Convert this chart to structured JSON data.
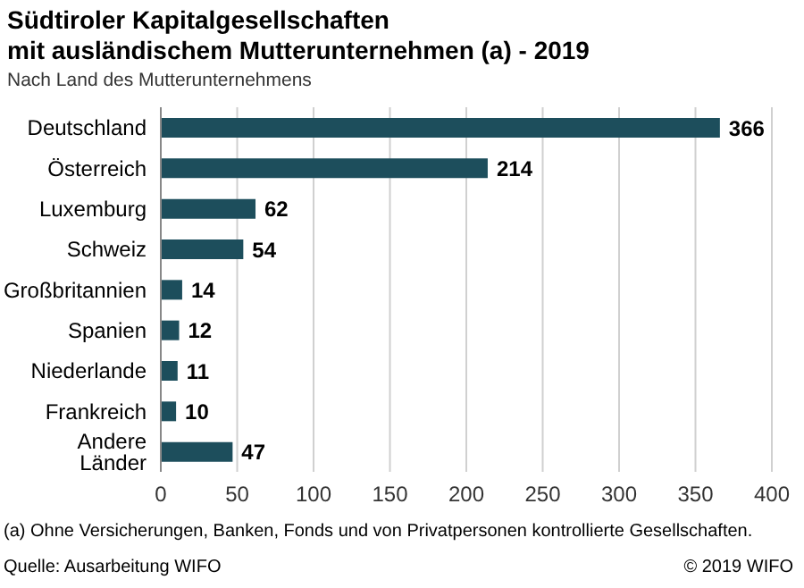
{
  "chart_data": {
    "type": "bar",
    "orientation": "horizontal",
    "title": "Südtiroler Kapitalgesellschaften\nmit ausländischem Mutterunternehmen (a) - 2019",
    "subtitle": "Nach Land des Mutterunternehmens",
    "categories": [
      "Deutschland",
      "Österreich",
      "Luxemburg",
      "Schweiz",
      "Großbritannien",
      "Spanien",
      "Niederlande",
      "Frankreich",
      "Andere Länder"
    ],
    "values": [
      366,
      214,
      62,
      54,
      14,
      12,
      11,
      10,
      47
    ],
    "color": "#1d4e5c",
    "data_labels": true,
    "xlim": [
      0,
      400
    ],
    "xticks": [
      0,
      50,
      100,
      150,
      200,
      250,
      300,
      350,
      400
    ],
    "grid": "x",
    "legend": false,
    "annotations": [
      "(a) Ohne Versicherungen, Banken, Fonds und von Privatpersonen kontrollierte Gesellschaften.",
      "Quelle: Ausarbeitung WIFO",
      "© 2019 WIFO"
    ]
  }
}
